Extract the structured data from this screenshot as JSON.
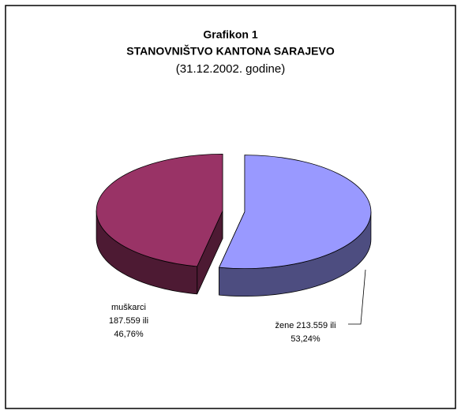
{
  "chart_data": {
    "type": "pie3d",
    "title": "Grafikon 1",
    "subtitle": "STANOVNIŠTVO KANTONA SARAJEVO",
    "date": "(31.12.2002. godine)",
    "categories": [
      "žene",
      "muškarci"
    ],
    "values": [
      213559,
      187559
    ],
    "colors": [
      "#9999ff",
      "#993366"
    ],
    "side_colors": [
      "#4d4d80",
      "#4d1a33"
    ],
    "value_labels": [
      [
        "žene 213.559 ili",
        "53,24%"
      ],
      [
        "muškarci",
        "187.559 ili",
        "46,76%"
      ]
    ]
  }
}
